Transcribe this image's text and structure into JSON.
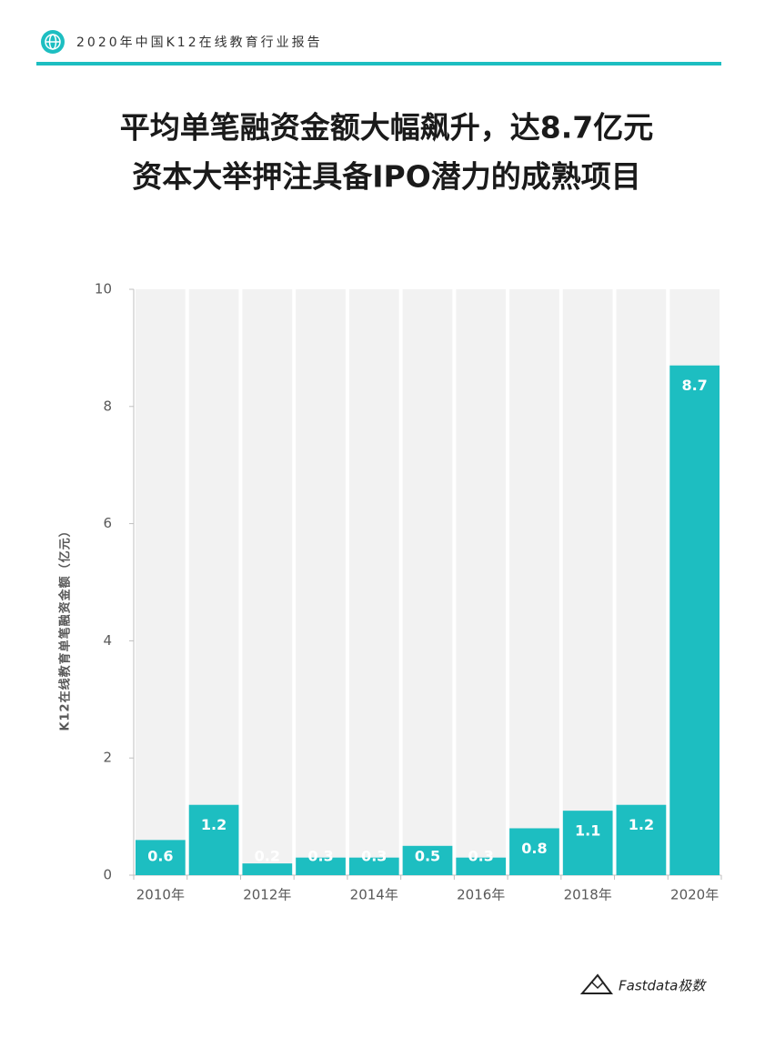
{
  "header": {
    "title": "2020年中国K12在线教育行业报告"
  },
  "footer": {
    "brand": "Fastdata极数"
  },
  "chart_data": {
    "type": "bar",
    "title": "平均单笔融资金额大幅飙升，达8.7亿元",
    "subtitle": "资本大举押注具备IPO潜力的成熟项目",
    "y_label": "K12在线教育单笔融资金额（亿元）",
    "categories": [
      "2010年",
      null,
      "2012年",
      null,
      "2014年",
      null,
      "2016年",
      null,
      "2018年",
      null,
      "2020年"
    ],
    "values": [
      0.6,
      1.2,
      0.2,
      0.3,
      0.3,
      0.5,
      0.3,
      0.8,
      1.1,
      1.2,
      8.7
    ],
    "color": "#1dbec1",
    "ylim": [
      0,
      10
    ],
    "yticks": [
      0,
      2,
      4,
      6,
      8,
      10
    ],
    "grid": true
  }
}
